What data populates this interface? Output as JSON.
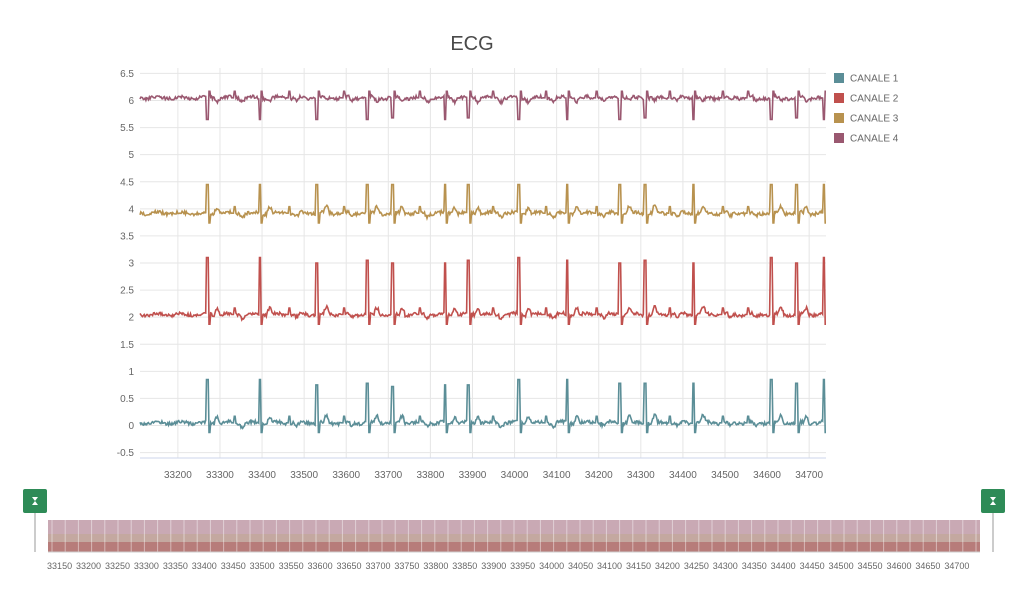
{
  "chart_data": {
    "type": "line",
    "title": "ECG",
    "xlabel": "",
    "ylabel": "",
    "xlim": [
      33110,
      34740
    ],
    "ylim": [
      -0.6,
      6.6
    ],
    "x_ticks": [
      33200,
      33300,
      33400,
      33500,
      33600,
      33700,
      33800,
      33900,
      34000,
      34100,
      34200,
      34300,
      34400,
      34500,
      34600,
      34700
    ],
    "y_ticks": [
      -0.5,
      0,
      0.5,
      1,
      1.5,
      2,
      2.5,
      3,
      3.5,
      4,
      4.5,
      5,
      5.5,
      6,
      6.5
    ],
    "grid": true,
    "legend_position": "right",
    "beat_times": [
      33270,
      33330,
      33395,
      33460,
      33530,
      33590,
      33650,
      33710,
      33770,
      33835,
      33890,
      33945,
      34010,
      34070,
      34125,
      34190,
      34250,
      34310,
      34365,
      34425,
      34490,
      34550,
      34610,
      34670,
      34735
    ],
    "series": [
      {
        "name": "CANALE 1",
        "color": "#5b8e97",
        "baseline": 0.05,
        "amplitude_values": [
          0.85,
          0.05,
          0.85,
          0.05,
          0.75,
          0.05,
          0.78,
          0.72,
          0.05,
          0.75,
          0.75,
          0.05,
          0.85,
          0.05,
          0.85,
          0.05,
          0.78,
          0.78,
          0.05,
          0.78,
          0.05,
          0.05,
          0.85,
          0.78,
          0.85
        ]
      },
      {
        "name": "CANALE 2",
        "color": "#c0504d",
        "baseline": 2.05,
        "amplitude_values": [
          3.1,
          2.05,
          3.1,
          2.05,
          3.0,
          2.05,
          3.05,
          3.0,
          2.05,
          3.0,
          3.05,
          2.05,
          3.1,
          2.05,
          3.05,
          2.05,
          3.0,
          3.05,
          2.05,
          3.0,
          2.05,
          2.05,
          3.1,
          3.0,
          3.1
        ]
      },
      {
        "name": "CANALE 3",
        "color": "#b8924f",
        "baseline": 3.92,
        "amplitude_values": [
          4.45,
          3.92,
          4.45,
          3.92,
          4.45,
          3.92,
          4.45,
          4.45,
          3.92,
          4.45,
          4.45,
          3.92,
          4.45,
          3.92,
          4.45,
          3.92,
          4.45,
          4.45,
          3.92,
          4.45,
          3.92,
          3.92,
          4.45,
          4.45,
          4.45
        ]
      },
      {
        "name": "CANALE 4",
        "color": "#9a5870",
        "baseline": 6.05,
        "amplitude_values": [
          5.65,
          6.05,
          5.65,
          6.05,
          5.65,
          6.05,
          5.65,
          5.68,
          6.05,
          5.65,
          5.68,
          6.05,
          5.65,
          6.05,
          5.65,
          6.05,
          5.65,
          5.68,
          6.05,
          5.65,
          6.05,
          6.05,
          5.65,
          5.68,
          5.65
        ]
      }
    ]
  },
  "navigator": {
    "ticks": [
      "33150",
      "33200",
      "33250",
      "33300",
      "33350",
      "33400",
      "33450",
      "33500",
      "33550",
      "33600",
      "33650",
      "33700",
      "33750",
      "33800",
      "33850",
      "33900",
      "33950",
      "34000",
      "34050",
      "34100",
      "34150",
      "34200",
      "34250",
      "34300",
      "34350",
      "34400",
      "34450",
      "34500",
      "34550",
      "34600",
      "34650",
      "34700"
    ],
    "handle_color": "#2e8b57",
    "band_colors": [
      "#c9a9b4",
      "#c4a8a0",
      "#b77c7a"
    ]
  }
}
